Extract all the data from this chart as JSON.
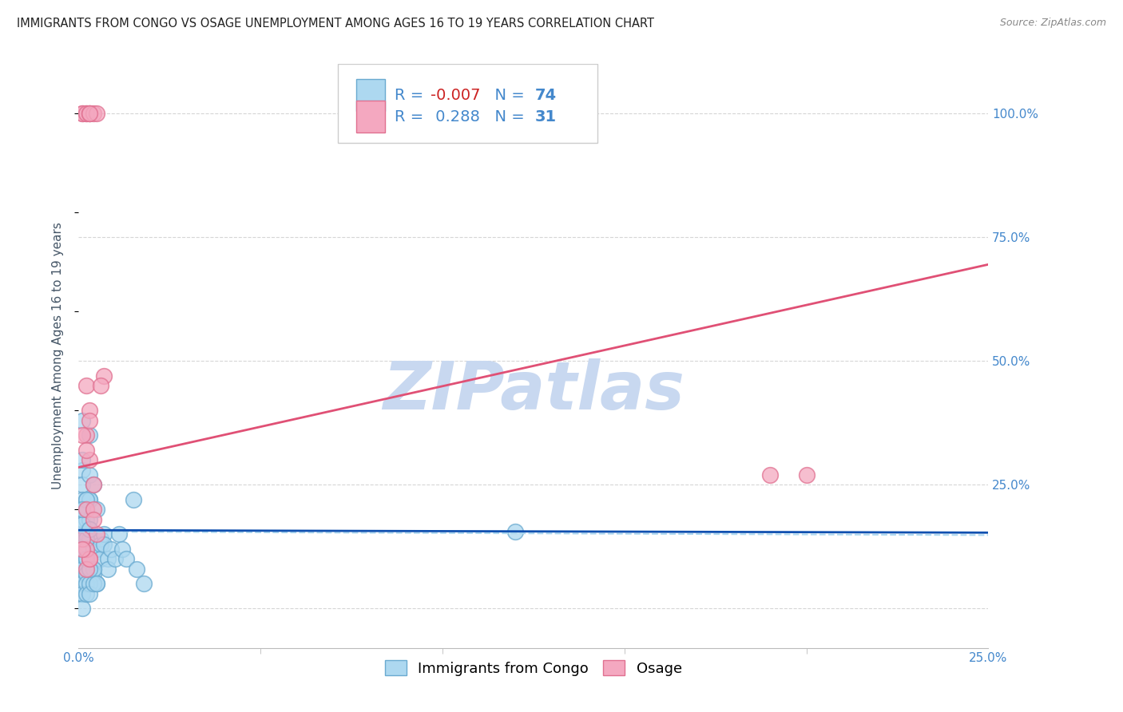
{
  "title": "IMMIGRANTS FROM CONGO VS OSAGE UNEMPLOYMENT AMONG AGES 16 TO 19 YEARS CORRELATION CHART",
  "source": "Source: ZipAtlas.com",
  "ylabel": "Unemployment Among Ages 16 to 19 years",
  "xlim": [
    0.0,
    0.25
  ],
  "ylim": [
    -0.08,
    1.1
  ],
  "legend_r_blue": "-0.007",
  "legend_n_blue": "74",
  "legend_r_pink": "0.288",
  "legend_n_pink": "31",
  "legend_labels": [
    "Immigrants from Congo",
    "Osage"
  ],
  "blue_color": "#ADD8F0",
  "pink_color": "#F4A8C0",
  "blue_edge_color": "#6AAAD0",
  "pink_edge_color": "#E07090",
  "blue_line_color": "#1050B0",
  "pink_line_color": "#E05075",
  "watermark": "ZIPatlas",
  "watermark_color": "#C8D8F0",
  "blue_scatter_x": [
    0.001,
    0.001,
    0.001,
    0.001,
    0.001,
    0.001,
    0.001,
    0.001,
    0.001,
    0.001,
    0.002,
    0.002,
    0.002,
    0.002,
    0.002,
    0.002,
    0.002,
    0.002,
    0.002,
    0.002,
    0.003,
    0.003,
    0.003,
    0.003,
    0.003,
    0.003,
    0.003,
    0.003,
    0.004,
    0.004,
    0.004,
    0.004,
    0.004,
    0.005,
    0.005,
    0.005,
    0.006,
    0.006,
    0.006,
    0.007,
    0.007,
    0.008,
    0.008,
    0.009,
    0.01,
    0.011,
    0.012,
    0.013,
    0.015,
    0.016,
    0.018,
    0.001,
    0.001,
    0.001,
    0.001,
    0.001,
    0.001,
    0.001,
    0.002,
    0.002,
    0.002,
    0.002,
    0.003,
    0.003,
    0.004,
    0.004,
    0.005,
    0.12,
    0.002,
    0.003,
    0.001,
    0.002,
    0.003,
    0.001
  ],
  "blue_scatter_y": [
    0.28,
    0.3,
    0.25,
    0.2,
    0.38,
    0.15,
    0.18,
    0.1,
    0.22,
    0.12,
    0.15,
    0.13,
    0.1,
    0.08,
    0.22,
    0.18,
    0.2,
    0.15,
    0.12,
    0.07,
    0.35,
    0.27,
    0.22,
    0.18,
    0.16,
    0.14,
    0.1,
    0.22,
    0.25,
    0.08,
    0.12,
    0.08,
    0.07,
    0.2,
    0.05,
    0.12,
    0.14,
    0.13,
    0.1,
    0.15,
    0.13,
    0.1,
    0.08,
    0.12,
    0.1,
    0.15,
    0.12,
    0.1,
    0.22,
    0.08,
    0.05,
    0.05,
    0.03,
    0.07,
    0.05,
    0.08,
    0.03,
    0.0,
    0.1,
    0.07,
    0.05,
    0.03,
    0.05,
    0.03,
    0.08,
    0.05,
    0.05,
    0.155,
    0.14,
    0.08,
    0.17,
    0.22,
    0.16,
    0.2
  ],
  "pink_scatter_x": [
    0.001,
    0.002,
    0.001,
    0.003,
    0.002,
    0.003,
    0.004,
    0.005,
    0.003,
    0.002,
    0.004,
    0.003,
    0.003,
    0.002,
    0.001,
    0.002,
    0.004,
    0.003,
    0.002,
    0.007,
    0.006,
    0.005,
    0.004,
    0.003,
    0.002,
    0.19,
    0.2,
    0.001,
    0.002,
    0.003,
    0.001
  ],
  "pink_scatter_y": [
    1.0,
    1.0,
    1.0,
    1.0,
    1.0,
    1.0,
    1.0,
    1.0,
    1.0,
    0.35,
    0.25,
    0.4,
    0.38,
    0.45,
    0.35,
    0.2,
    0.2,
    0.3,
    0.32,
    0.47,
    0.45,
    0.15,
    0.18,
    0.1,
    0.12,
    0.27,
    0.27,
    0.14,
    0.08,
    0.1,
    0.12
  ],
  "blue_trend": [
    0.0,
    0.25,
    0.158,
    0.153
  ],
  "blue_dash_trend": [
    0.0,
    0.25,
    0.155,
    0.148
  ],
  "pink_trend": [
    0.0,
    0.25,
    0.285,
    0.695
  ],
  "grid_color": "#CCCCCC",
  "background_color": "#FFFFFF",
  "title_fontsize": 10.5,
  "axis_label_fontsize": 11,
  "tick_fontsize": 11,
  "legend_fontsize": 14
}
